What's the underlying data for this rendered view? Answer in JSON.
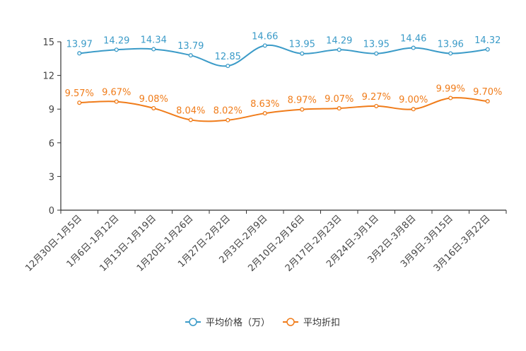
{
  "chart_data": {
    "type": "line",
    "categories": [
      "12月30日-1月5日",
      "1月6日-1月12日",
      "1月13日-1月19日",
      "1月20日-1月26日",
      "1月27日-2月2日",
      "2月3日-2月9日",
      "2月10日-2月16日",
      "2月17日-2月23日",
      "2月24日-3月1日",
      "3月2日-3月8日",
      "3月9日-3月15日",
      "3月16日-3月22日"
    ],
    "series": [
      {
        "name": "平均价格（万）",
        "color": "#3b9bc8",
        "values": [
          13.97,
          14.29,
          14.34,
          13.79,
          12.85,
          14.66,
          13.95,
          14.29,
          13.95,
          14.46,
          13.96,
          14.32
        ],
        "labels": [
          "13.97",
          "14.29",
          "14.34",
          "13.79",
          "12.85",
          "14.66",
          "13.95",
          "14.29",
          "13.95",
          "14.46",
          "13.96",
          "14.32"
        ]
      },
      {
        "name": "平均折扣",
        "color": "#f07c1a",
        "values": [
          9.57,
          9.67,
          9.08,
          8.04,
          8.02,
          8.63,
          8.97,
          9.07,
          9.27,
          9.0,
          9.99,
          9.7
        ],
        "labels": [
          "9.57%",
          "9.67%",
          "9.08%",
          "8.04%",
          "8.02%",
          "8.63%",
          "8.97%",
          "9.07%",
          "9.27%",
          "9.00%",
          "9.99%",
          "9.70%"
        ]
      }
    ],
    "ylim": [
      0,
      15
    ],
    "yticks": [
      "0",
      "3",
      "6",
      "9",
      "12",
      "15"
    ],
    "title": "",
    "xlabel": "",
    "ylabel": "",
    "legend": "bottom-center"
  }
}
